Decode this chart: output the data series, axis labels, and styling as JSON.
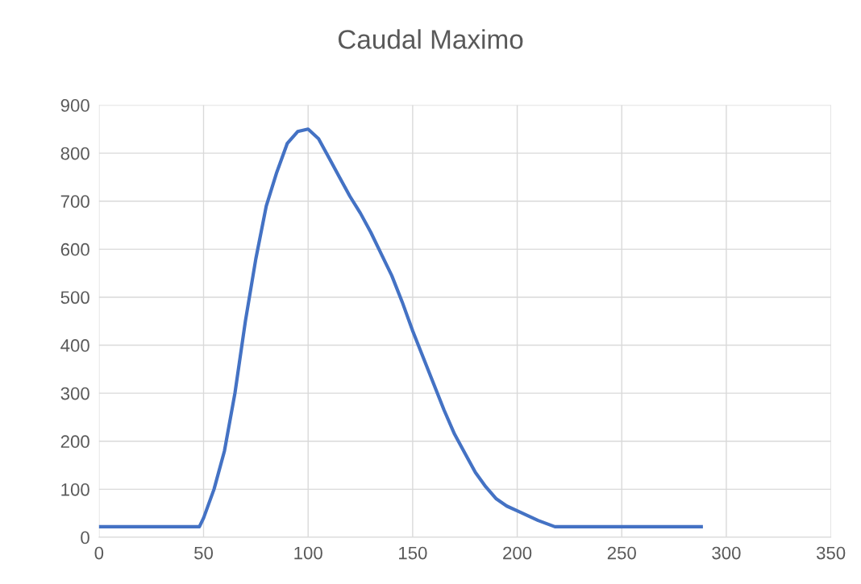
{
  "chart_data": {
    "type": "line",
    "title": "Caudal Maximo",
    "x": [
      0,
      48,
      50,
      55,
      60,
      65,
      70,
      75,
      80,
      85,
      90,
      95,
      100,
      105,
      110,
      115,
      120,
      125,
      130,
      135,
      140,
      145,
      150,
      155,
      160,
      165,
      170,
      175,
      180,
      185,
      190,
      195,
      200,
      210,
      218,
      288
    ],
    "series": [
      {
        "color": "#4472c4",
        "values": [
          22,
          22,
          40,
          100,
          180,
          300,
          450,
          580,
          690,
          760,
          820,
          845,
          850,
          830,
          790,
          750,
          710,
          675,
          635,
          590,
          545,
          490,
          430,
          375,
          320,
          265,
          215,
          175,
          135,
          105,
          80,
          65,
          55,
          35,
          22,
          22
        ]
      }
    ],
    "xlim": [
      0,
      350
    ],
    "xticks": [
      0,
      50,
      100,
      150,
      200,
      250,
      300,
      350
    ],
    "ylim": [
      0,
      900
    ],
    "yticks": [
      0,
      100,
      200,
      300,
      400,
      500,
      600,
      700,
      800,
      900
    ],
    "grid": true,
    "legend": false
  }
}
